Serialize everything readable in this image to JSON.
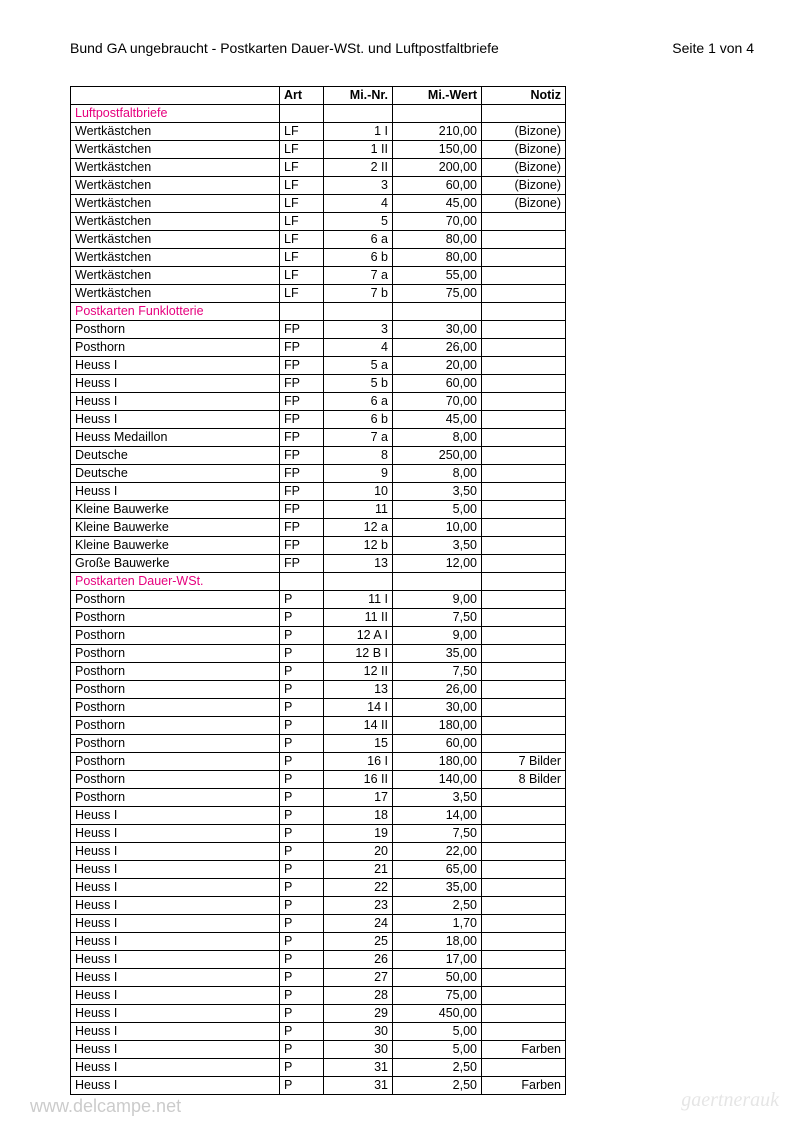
{
  "header": {
    "title": "Bund GA ungebraucht - Postkarten Dauer-WSt. und Luftpostfaltbriefe",
    "page_label": "Seite 1 von 4"
  },
  "columns": [
    "",
    "Art",
    "Mi.-Nr.",
    "Mi.-Wert",
    "Notiz"
  ],
  "sections": [
    {
      "name": "Luftpostfaltbriefe",
      "rows": [
        {
          "name": "Wertkästchen",
          "art": "LF",
          "minr": "1 I",
          "miwert": "210,00",
          "notiz": "(Bizone)"
        },
        {
          "name": "Wertkästchen",
          "art": "LF",
          "minr": "1 II",
          "miwert": "150,00",
          "notiz": "(Bizone)"
        },
        {
          "name": "Wertkästchen",
          "art": "LF",
          "minr": "2 II",
          "miwert": "200,00",
          "notiz": "(Bizone)"
        },
        {
          "name": "Wertkästchen",
          "art": "LF",
          "minr": "3",
          "miwert": "60,00",
          "notiz": "(Bizone)"
        },
        {
          "name": "Wertkästchen",
          "art": "LF",
          "minr": "4",
          "miwert": "45,00",
          "notiz": "(Bizone)"
        },
        {
          "name": "Wertkästchen",
          "art": "LF",
          "minr": "5",
          "miwert": "70,00",
          "notiz": ""
        },
        {
          "name": "Wertkästchen",
          "art": "LF",
          "minr": "6 a",
          "miwert": "80,00",
          "notiz": ""
        },
        {
          "name": "Wertkästchen",
          "art": "LF",
          "minr": "6 b",
          "miwert": "80,00",
          "notiz": ""
        },
        {
          "name": "Wertkästchen",
          "art": "LF",
          "minr": "7 a",
          "miwert": "55,00",
          "notiz": ""
        },
        {
          "name": "Wertkästchen",
          "art": "LF",
          "minr": "7 b",
          "miwert": "75,00",
          "notiz": ""
        }
      ]
    },
    {
      "name": "Postkarten Funklotterie",
      "rows": [
        {
          "name": "Posthorn",
          "art": "FP",
          "minr": "3",
          "miwert": "30,00",
          "notiz": ""
        },
        {
          "name": "Posthorn",
          "art": "FP",
          "minr": "4",
          "miwert": "26,00",
          "notiz": ""
        },
        {
          "name": "Heuss I",
          "art": "FP",
          "minr": "5 a",
          "miwert": "20,00",
          "notiz": ""
        },
        {
          "name": "Heuss I",
          "art": "FP",
          "minr": "5 b",
          "miwert": "60,00",
          "notiz": ""
        },
        {
          "name": "Heuss I",
          "art": "FP",
          "minr": "6 a",
          "miwert": "70,00",
          "notiz": ""
        },
        {
          "name": "Heuss I",
          "art": "FP",
          "minr": "6 b",
          "miwert": "45,00",
          "notiz": ""
        },
        {
          "name": "Heuss Medaillon",
          "art": "FP",
          "minr": "7 a",
          "miwert": "8,00",
          "notiz": ""
        },
        {
          "name": "Deutsche",
          "art": "FP",
          "minr": "8",
          "miwert": "250,00",
          "notiz": ""
        },
        {
          "name": "Deutsche",
          "art": "FP",
          "minr": "9",
          "miwert": "8,00",
          "notiz": ""
        },
        {
          "name": "Heuss I",
          "art": "FP",
          "minr": "10",
          "miwert": "3,50",
          "notiz": ""
        },
        {
          "name": "Kleine Bauwerke",
          "art": "FP",
          "minr": "11",
          "miwert": "5,00",
          "notiz": ""
        },
        {
          "name": "Kleine Bauwerke",
          "art": "FP",
          "minr": "12 a",
          "miwert": "10,00",
          "notiz": ""
        },
        {
          "name": "Kleine Bauwerke",
          "art": "FP",
          "minr": "12 b",
          "miwert": "3,50",
          "notiz": ""
        },
        {
          "name": "Große Bauwerke",
          "art": "FP",
          "minr": "13",
          "miwert": "12,00",
          "notiz": ""
        }
      ]
    },
    {
      "name": "Postkarten Dauer-WSt.",
      "rows": [
        {
          "name": "Posthorn",
          "art": "P",
          "minr": "11 I",
          "miwert": "9,00",
          "notiz": ""
        },
        {
          "name": "Posthorn",
          "art": "P",
          "minr": "11 II",
          "miwert": "7,50",
          "notiz": ""
        },
        {
          "name": "Posthorn",
          "art": "P",
          "minr": "12 A I",
          "miwert": "9,00",
          "notiz": ""
        },
        {
          "name": "Posthorn",
          "art": "P",
          "minr": "12 B I",
          "miwert": "35,00",
          "notiz": ""
        },
        {
          "name": "Posthorn",
          "art": "P",
          "minr": "12 II",
          "miwert": "7,50",
          "notiz": ""
        },
        {
          "name": "Posthorn",
          "art": "P",
          "minr": "13",
          "miwert": "26,00",
          "notiz": ""
        },
        {
          "name": "Posthorn",
          "art": "P",
          "minr": "14 I",
          "miwert": "30,00",
          "notiz": ""
        },
        {
          "name": "Posthorn",
          "art": "P",
          "minr": "14 II",
          "miwert": "180,00",
          "notiz": ""
        },
        {
          "name": "Posthorn",
          "art": "P",
          "minr": "15",
          "miwert": "60,00",
          "notiz": ""
        },
        {
          "name": "Posthorn",
          "art": "P",
          "minr": "16 I",
          "miwert": "180,00",
          "notiz": "7 Bilder"
        },
        {
          "name": "Posthorn",
          "art": "P",
          "minr": "16 II",
          "miwert": "140,00",
          "notiz": "8 Bilder"
        },
        {
          "name": "Posthorn",
          "art": "P",
          "minr": "17",
          "miwert": "3,50",
          "notiz": ""
        },
        {
          "name": "Heuss I",
          "art": "P",
          "minr": "18",
          "miwert": "14,00",
          "notiz": ""
        },
        {
          "name": "Heuss I",
          "art": "P",
          "minr": "19",
          "miwert": "7,50",
          "notiz": ""
        },
        {
          "name": "Heuss I",
          "art": "P",
          "minr": "20",
          "miwert": "22,00",
          "notiz": ""
        },
        {
          "name": "Heuss I",
          "art": "P",
          "minr": "21",
          "miwert": "65,00",
          "notiz": ""
        },
        {
          "name": "Heuss I",
          "art": "P",
          "minr": "22",
          "miwert": "35,00",
          "notiz": ""
        },
        {
          "name": "Heuss I",
          "art": "P",
          "minr": "23",
          "miwert": "2,50",
          "notiz": ""
        },
        {
          "name": "Heuss I",
          "art": "P",
          "minr": "24",
          "miwert": "1,70",
          "notiz": ""
        },
        {
          "name": "Heuss I",
          "art": "P",
          "minr": "25",
          "miwert": "18,00",
          "notiz": ""
        },
        {
          "name": "Heuss I",
          "art": "P",
          "minr": "26",
          "miwert": "17,00",
          "notiz": ""
        },
        {
          "name": "Heuss I",
          "art": "P",
          "minr": "27",
          "miwert": "50,00",
          "notiz": ""
        },
        {
          "name": "Heuss I",
          "art": "P",
          "minr": "28",
          "miwert": "75,00",
          "notiz": ""
        },
        {
          "name": "Heuss I",
          "art": "P",
          "minr": "29",
          "miwert": "450,00",
          "notiz": ""
        },
        {
          "name": "Heuss I",
          "art": "P",
          "minr": "30",
          "miwert": "5,00",
          "notiz": ""
        },
        {
          "name": "Heuss I",
          "art": "P",
          "minr": "30",
          "miwert": "5,00",
          "notiz": "Farben"
        },
        {
          "name": "Heuss I",
          "art": "P",
          "minr": "31",
          "miwert": "2,50",
          "notiz": ""
        },
        {
          "name": "Heuss I",
          "art": "P",
          "minr": "31",
          "miwert": "2,50",
          "notiz": "Farben"
        }
      ]
    }
  ],
  "watermarks": {
    "left": "www.delcampe.net",
    "right": "gaertnerauk"
  },
  "styling": {
    "section_color": "#e6007e",
    "border_color": "#000000",
    "background": "#ffffff",
    "font_size_body": 12.5,
    "font_size_header": 14
  }
}
